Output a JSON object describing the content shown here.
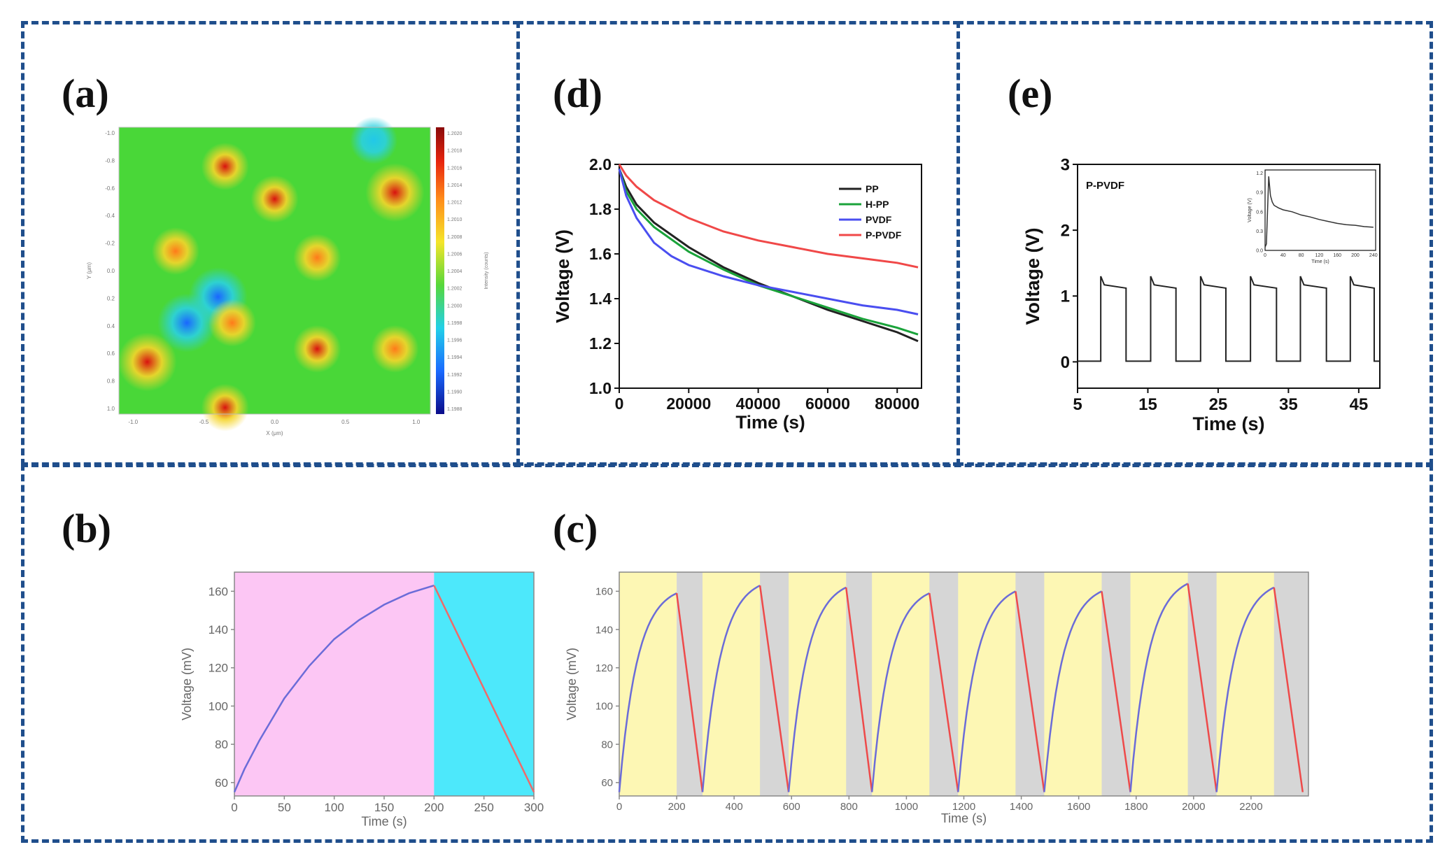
{
  "panels": {
    "a": {
      "label": "(a)"
    },
    "b": {
      "label": "(b)"
    },
    "c": {
      "label": "(c)"
    },
    "d": {
      "label": "(d)"
    },
    "e": {
      "label": "(e)"
    }
  },
  "chart_data": [
    {
      "id": "a",
      "type": "heatmap",
      "xlabel": "X (μm)",
      "ylabel": "Y (μm)",
      "colorbar_label": "Intensity (counts)",
      "xticks": [
        "-1.0",
        "-0.5",
        "0.0",
        "0.5",
        "1.0"
      ],
      "yticks": [
        "-1.0",
        "-0.8",
        "-0.6",
        "-0.4",
        "-0.2",
        "0.0",
        "0.2",
        "0.4",
        "0.6",
        "0.8",
        "1.0"
      ],
      "colorbar_ticks": [
        "1.2020",
        "1.2018",
        "1.2016",
        "1.2014",
        "1.2012",
        "1.2010",
        "1.2008",
        "1.2006",
        "1.2004",
        "1.2002",
        "1.2000",
        "1.1998",
        "1.1996",
        "1.1994",
        "1.1992",
        "1.1990",
        "1.1988"
      ],
      "background_level": 1.2003,
      "features": [
        {
          "x": -0.35,
          "y": -0.8,
          "level": 1.2016
        },
        {
          "x": 0.0,
          "y": -0.55,
          "level": 1.2016
        },
        {
          "x": 0.85,
          "y": -0.6,
          "level": 1.202
        },
        {
          "x": -0.7,
          "y": -0.15,
          "level": 1.2014
        },
        {
          "x": 0.3,
          "y": -0.1,
          "level": 1.2014
        },
        {
          "x": -0.4,
          "y": 0.2,
          "level": 1.1988
        },
        {
          "x": -0.62,
          "y": 0.4,
          "level": 1.199
        },
        {
          "x": -0.9,
          "y": 0.7,
          "level": 1.2018
        },
        {
          "x": -0.3,
          "y": 0.4,
          "level": 1.2014
        },
        {
          "x": 0.3,
          "y": 0.6,
          "level": 1.2016
        },
        {
          "x": 0.85,
          "y": 0.6,
          "level": 1.2014
        },
        {
          "x": -0.35,
          "y": 1.05,
          "level": 1.2016
        },
        {
          "x": 0.7,
          "y": -1.0,
          "level": 1.1996
        }
      ]
    },
    {
      "id": "b",
      "type": "line",
      "xlabel": "Time (s)",
      "ylabel": "Voltage (mV)",
      "xlim": [
        0,
        300
      ],
      "ylim": [
        53,
        170
      ],
      "xticks": [
        0,
        50,
        100,
        150,
        200,
        250,
        300
      ],
      "yticks": [
        60,
        80,
        100,
        120,
        140,
        160
      ],
      "regions": [
        {
          "from": 0,
          "to": 200,
          "color": "#fcc6f4"
        },
        {
          "from": 200,
          "to": 300,
          "color": "#4de8fb"
        }
      ],
      "series": [
        {
          "color": "#6b6cd8",
          "x": [
            0,
            10,
            25,
            50,
            75,
            100,
            125,
            150,
            175,
            200
          ],
          "y": [
            55,
            67,
            82,
            104,
            121,
            135,
            145,
            153,
            159,
            163
          ]
        },
        {
          "color": "#ee6a6a",
          "x": [
            200,
            300
          ],
          "y": [
            163,
            55
          ]
        }
      ]
    },
    {
      "id": "c",
      "type": "line",
      "xlabel": "Time (s)",
      "ylabel": "Voltage (mV)",
      "xlim": [
        0,
        2400
      ],
      "ylim": [
        53,
        170
      ],
      "xticks": [
        0,
        200,
        400,
        600,
        800,
        1000,
        1200,
        1400,
        1600,
        1800,
        2000,
        2200
      ],
      "yticks": [
        60,
        80,
        100,
        120,
        140,
        160
      ],
      "charge_color": "#fdf7b4",
      "rest_color": "#d6d6d6",
      "cycles": [
        {
          "charge_start": 0,
          "charge_end": 200,
          "discharge_end": 290,
          "peak": 159
        },
        {
          "charge_start": 290,
          "charge_end": 490,
          "discharge_end": 590,
          "peak": 163
        },
        {
          "charge_start": 590,
          "charge_end": 790,
          "discharge_end": 880,
          "peak": 162
        },
        {
          "charge_start": 880,
          "charge_end": 1080,
          "discharge_end": 1180,
          "peak": 159
        },
        {
          "charge_start": 1180,
          "charge_end": 1380,
          "discharge_end": 1480,
          "peak": 160
        },
        {
          "charge_start": 1480,
          "charge_end": 1680,
          "discharge_end": 1780,
          "peak": 160
        },
        {
          "charge_start": 1780,
          "charge_end": 1980,
          "discharge_end": 2080,
          "peak": 164
        },
        {
          "charge_start": 2080,
          "charge_end": 2280,
          "discharge_end": 2380,
          "peak": 162
        }
      ],
      "baseline": 55
    },
    {
      "id": "d",
      "type": "line",
      "xlabel": "Time (s)",
      "ylabel": "Voltage (V)",
      "xlim": [
        0,
        87000
      ],
      "ylim": [
        1.0,
        2.0
      ],
      "xticks": [
        0,
        20000,
        40000,
        60000,
        80000
      ],
      "yticks": [
        "1.0",
        "1.2",
        "1.4",
        "1.6",
        "1.8",
        "2.0"
      ],
      "legend_position": "top-right",
      "series": [
        {
          "name": "PP",
          "color": "#222222",
          "x": [
            0,
            2000,
            5000,
            10000,
            20000,
            30000,
            40000,
            50000,
            60000,
            70000,
            80000,
            86000
          ],
          "y": [
            1.98,
            1.9,
            1.82,
            1.74,
            1.63,
            1.54,
            1.47,
            1.41,
            1.35,
            1.3,
            1.25,
            1.21
          ]
        },
        {
          "name": "H-PP",
          "color": "#1aa33a",
          "x": [
            0,
            2000,
            5000,
            10000,
            20000,
            30000,
            40000,
            50000,
            60000,
            70000,
            80000,
            86000
          ],
          "y": [
            1.98,
            1.88,
            1.8,
            1.72,
            1.61,
            1.53,
            1.46,
            1.41,
            1.36,
            1.31,
            1.27,
            1.24
          ]
        },
        {
          "name": "PVDF",
          "color": "#4a4ef0",
          "x": [
            0,
            2000,
            5000,
            10000,
            15000,
            20000,
            30000,
            40000,
            50000,
            60000,
            70000,
            80000,
            86000
          ],
          "y": [
            1.98,
            1.86,
            1.76,
            1.65,
            1.59,
            1.55,
            1.5,
            1.46,
            1.43,
            1.4,
            1.37,
            1.35,
            1.33
          ]
        },
        {
          "name": "P-PVDF",
          "color": "#f04848",
          "x": [
            0,
            2000,
            5000,
            10000,
            20000,
            30000,
            40000,
            50000,
            60000,
            70000,
            80000,
            86000
          ],
          "y": [
            2.0,
            1.95,
            1.9,
            1.84,
            1.76,
            1.7,
            1.66,
            1.63,
            1.6,
            1.58,
            1.56,
            1.54
          ]
        }
      ]
    },
    {
      "id": "e",
      "type": "line",
      "xlabel": "Time (s)",
      "ylabel": "Voltage (V)",
      "xlim": [
        5,
        48
      ],
      "ylim": [
        -0.4,
        3
      ],
      "xticks": [
        5,
        15,
        25,
        35,
        45
      ],
      "yticks": [
        0,
        1,
        2,
        3
      ],
      "annotation": "P-PVDF",
      "pulses": [
        {
          "on": 8.3,
          "off": 11.9
        },
        {
          "on": 15.4,
          "off": 19.0
        },
        {
          "on": 22.5,
          "off": 26.1
        },
        {
          "on": 29.6,
          "off": 33.3
        },
        {
          "on": 36.7,
          "off": 40.4
        },
        {
          "on": 43.8,
          "off": 47.2
        }
      ],
      "on_level": 1.12,
      "on_peak": 1.3,
      "off_level": 0.01,
      "inset": {
        "type": "line",
        "xlabel": "Time (s)",
        "ylabel": "Voltage (V)",
        "xlim": [
          0,
          245
        ],
        "ylim": [
          0,
          1.25
        ],
        "xticks": [
          0,
          40,
          80,
          120,
          160,
          200,
          240
        ],
        "yticks": [
          "0.0",
          "0.3",
          "0.6",
          "0.9",
          "1.2"
        ],
        "x": [
          0,
          3,
          8,
          12,
          16,
          20,
          30,
          40,
          60,
          80,
          100,
          120,
          140,
          160,
          180,
          200,
          220,
          240
        ],
        "y": [
          0.05,
          0.1,
          1.15,
          0.85,
          0.75,
          0.7,
          0.66,
          0.63,
          0.6,
          0.55,
          0.52,
          0.48,
          0.45,
          0.42,
          0.4,
          0.39,
          0.37,
          0.36
        ]
      }
    }
  ]
}
